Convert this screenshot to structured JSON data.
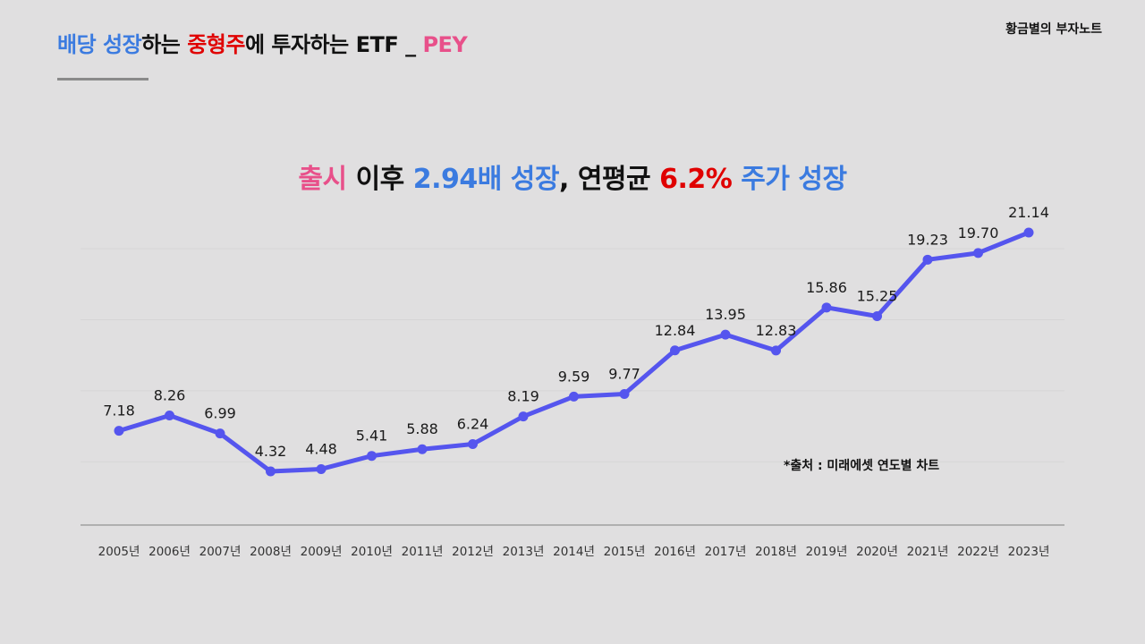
{
  "header": {
    "title_parts": [
      {
        "text": "배당 성장",
        "color": "#3b7be0"
      },
      {
        "text": "하는 ",
        "color": "#111111"
      },
      {
        "text": "중형주",
        "color": "#e00000"
      },
      {
        "text": "에 투자하는 ETF _ ",
        "color": "#111111"
      },
      {
        "text": "PEY",
        "color": "#e8508a"
      }
    ],
    "brand": "황금별의 부자노트"
  },
  "headline_parts": [
    {
      "text": "출시",
      "color": "#e8508a"
    },
    {
      "text": " 이후 ",
      "color": "#111111"
    },
    {
      "text": "2.94배 성장",
      "color": "#3b7be0"
    },
    {
      "text": ", 연평균 ",
      "color": "#111111"
    },
    {
      "text": "6.2%",
      "color": "#e00000"
    },
    {
      "text": " 주가 성장",
      "color": "#3b7be0"
    }
  ],
  "source": "*출처 : 미래에셋 연도별 차트",
  "chart_data": {
    "type": "line",
    "title": "출시 이후 2.94배 성장, 연평균 6.2% 주가 성장",
    "categories": [
      "2005년",
      "2006년",
      "2007년",
      "2008년",
      "2009년",
      "2010년",
      "2011년",
      "2012년",
      "2013년",
      "2014년",
      "2015년",
      "2016년",
      "2017년",
      "2018년",
      "2019년",
      "2020년",
      "2021년",
      "2022년",
      "2023년"
    ],
    "series": [
      {
        "name": "PEY",
        "color": "#5555ee",
        "values": [
          7.18,
          8.26,
          6.99,
          4.32,
          4.48,
          5.41,
          5.88,
          6.24,
          8.19,
          9.59,
          9.77,
          12.84,
          13.95,
          12.83,
          15.86,
          15.25,
          19.23,
          19.7,
          21.14
        ],
        "labels": [
          "7.18",
          "8.26",
          "6.99",
          "4.32",
          "4.48",
          "5.41",
          "5.88",
          "6.24",
          "8.19",
          "9.59",
          "9.77",
          "12.84",
          "13.95",
          "12.83",
          "15.86",
          "15.25",
          "19.23",
          "19.70",
          "21.14"
        ]
      }
    ],
    "xlabel": "",
    "ylabel": "",
    "ylim": [
      0,
      25
    ],
    "grid": true,
    "legend": "none"
  }
}
